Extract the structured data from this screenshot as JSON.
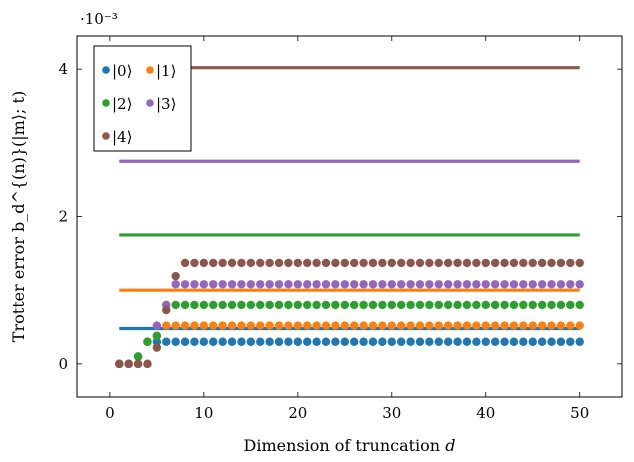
{
  "chart_data": {
    "type": "scatter",
    "title": "",
    "xlabel": "Dimension of truncation d",
    "ylabel": "Trotter error b_d^{(n)}(|m⟩; t)",
    "exponent_label": "·10⁻³",
    "xlim": [
      -3.5,
      54.5
    ],
    "ylim": [
      -0.45,
      4.45
    ],
    "x_ticks": [
      0,
      10,
      20,
      30,
      40,
      50
    ],
    "x_tick_labels": [
      "0",
      "10",
      "20",
      "30",
      "40",
      "50"
    ],
    "y_ticks": [
      0,
      2,
      4
    ],
    "y_tick_labels": [
      "0",
      "2",
      "4"
    ],
    "y_scale_note": "values in units of 10^-3",
    "grid": false,
    "legend_position": "top-left",
    "series": [
      {
        "name": "|0⟩",
        "color": "#1f77b4",
        "reference_line": 0.48,
        "line_from": 1,
        "line_to": 50,
        "points": [
          [
            1,
            0
          ],
          [
            2,
            0
          ],
          [
            3,
            0.1
          ],
          [
            4,
            0.3
          ],
          [
            5,
            0.3
          ],
          [
            6,
            0.3
          ],
          [
            7,
            0.3
          ]
        ],
        "plateau": 0.3,
        "plateau_from": 8,
        "plateau_to": 50
      },
      {
        "name": "|1⟩",
        "color": "#ff7f0e",
        "reference_line": 1.0,
        "line_from": 1,
        "line_to": 50,
        "points": [
          [
            1,
            0
          ],
          [
            2,
            0
          ],
          [
            3,
            0
          ],
          [
            4,
            0.3
          ],
          [
            5,
            0.38
          ],
          [
            6,
            0.52
          ]
        ],
        "plateau": 0.52,
        "plateau_from": 7,
        "plateau_to": 50
      },
      {
        "name": "|2⟩",
        "color": "#2ca02c",
        "reference_line": 1.75,
        "line_from": 1,
        "line_to": 50,
        "points": [
          [
            1,
            0
          ],
          [
            2,
            0
          ],
          [
            3,
            0.1
          ],
          [
            4,
            0.3
          ],
          [
            5,
            0.38
          ],
          [
            6,
            0.8
          ]
        ],
        "plateau": 0.8,
        "plateau_from": 7,
        "plateau_to": 50
      },
      {
        "name": "|3⟩",
        "color": "#9467bd",
        "reference_line": 2.75,
        "line_from": 1,
        "line_to": 50,
        "points": [
          [
            1,
            0
          ],
          [
            2,
            0
          ],
          [
            3,
            0
          ],
          [
            4,
            0
          ],
          [
            5,
            0.52
          ],
          [
            6,
            0.8
          ],
          [
            7,
            1.08
          ]
        ],
        "plateau": 1.08,
        "plateau_from": 8,
        "plateau_to": 50
      },
      {
        "name": "|4⟩",
        "color": "#8c564b",
        "reference_line": 4.02,
        "line_from": 1,
        "line_to": 50,
        "points": [
          [
            1,
            0
          ],
          [
            2,
            0
          ],
          [
            3,
            0
          ],
          [
            4,
            0
          ],
          [
            5,
            0.22
          ],
          [
            6,
            0.73
          ],
          [
            7,
            1.19
          ]
        ],
        "plateau": 1.37,
        "plateau_from": 8,
        "plateau_to": 50
      }
    ]
  }
}
